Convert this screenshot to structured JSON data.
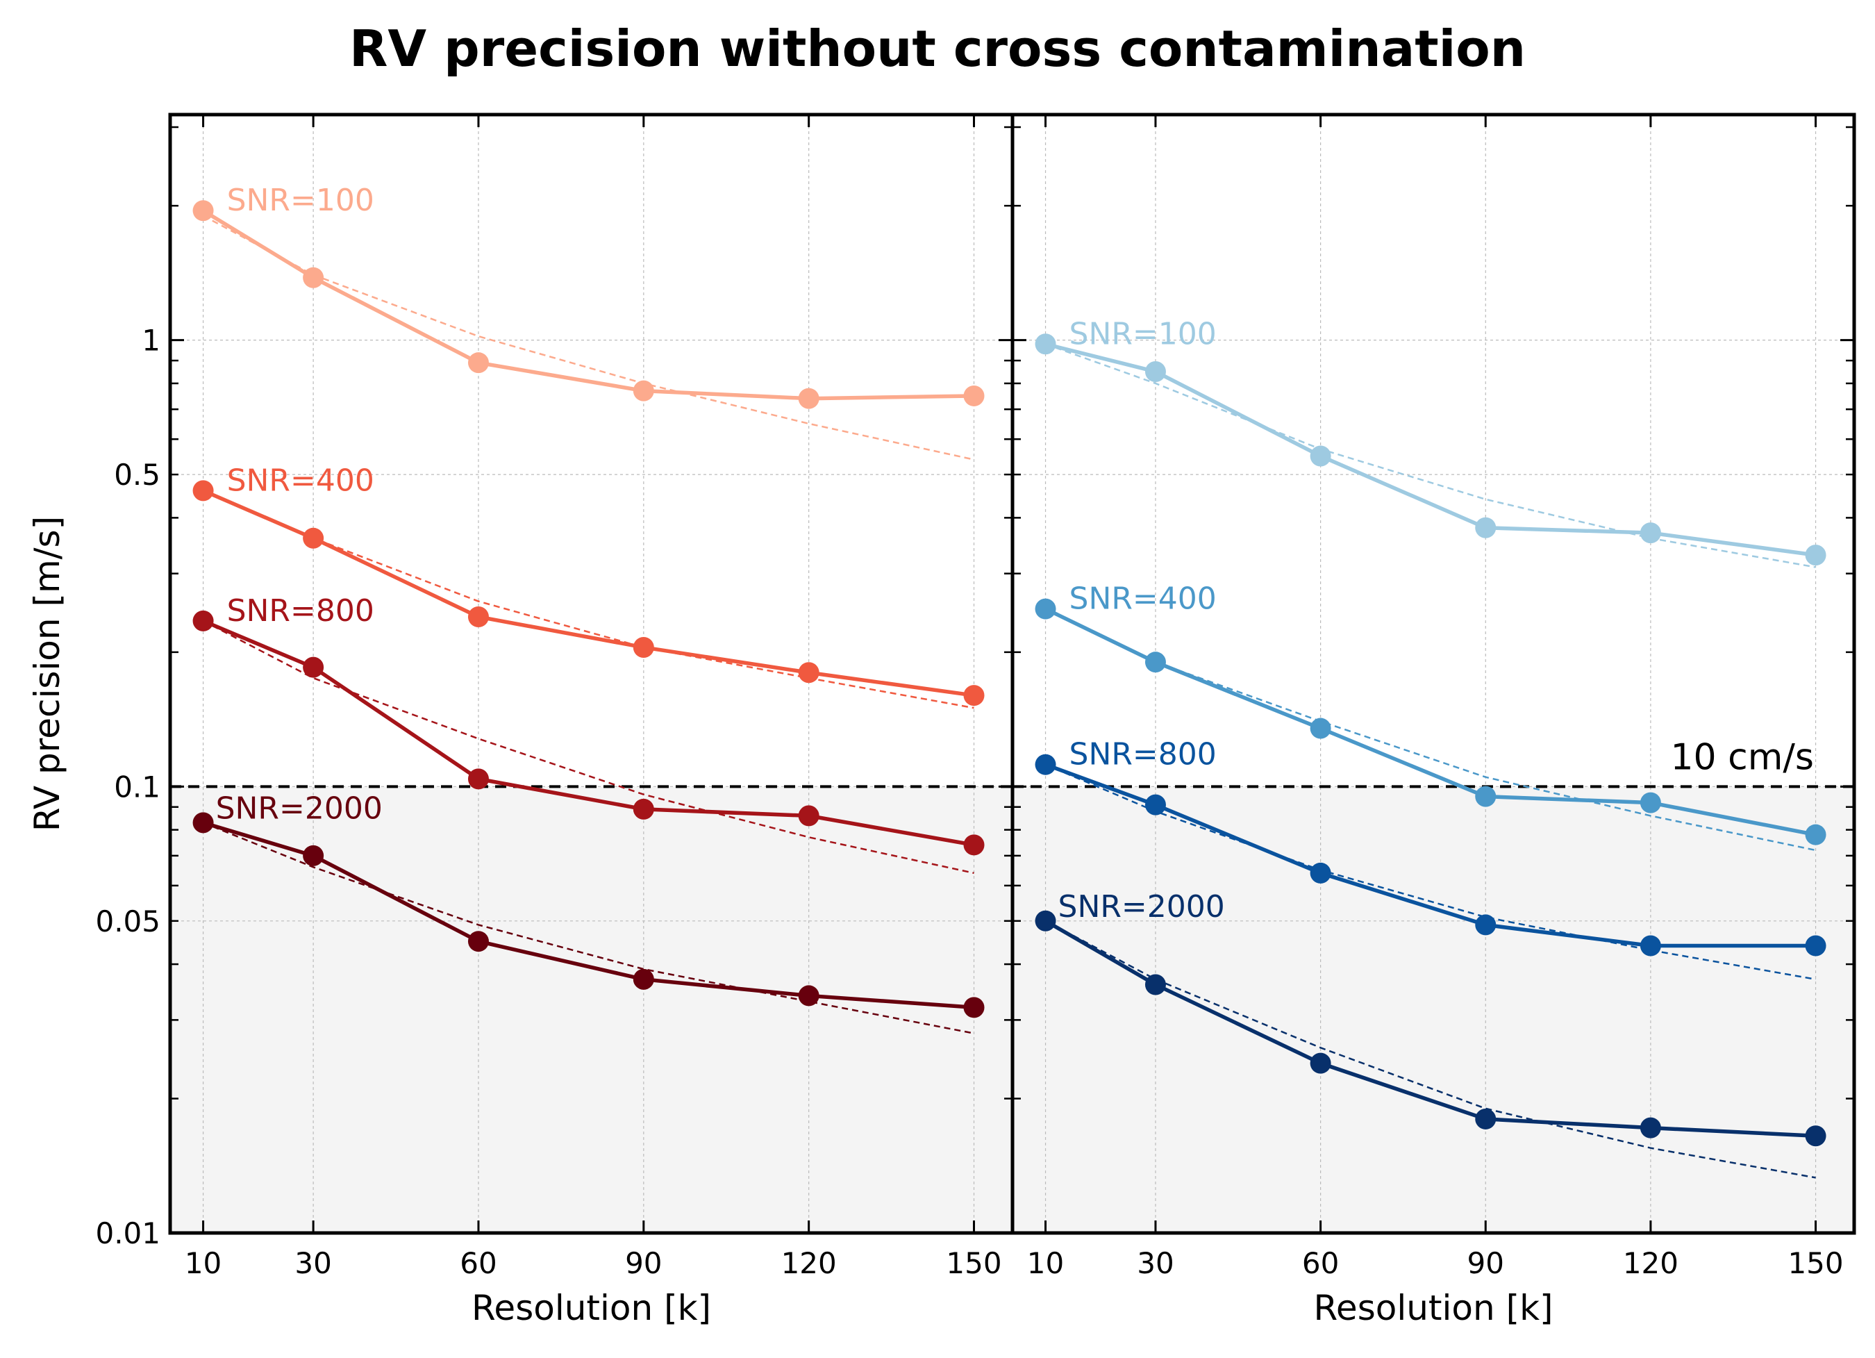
{
  "title": "RV precision without cross contamination",
  "chart_data": [
    {
      "type": "line",
      "panel": "left",
      "xlabel": "Resolution [k]",
      "ylabel": "RV precision [m/s]",
      "yscale": "log",
      "ylim": [
        0.01,
        3.2
      ],
      "xlim": [
        4,
        157
      ],
      "x": [
        10,
        30,
        60,
        90,
        120,
        150
      ],
      "xticks": [
        "10",
        "30",
        "60",
        "90",
        "120",
        "150"
      ],
      "yticks": [
        {
          "value": 0.01,
          "label": "0.01"
        },
        {
          "value": 0.05,
          "label": "0.05"
        },
        {
          "value": 0.1,
          "label": "0.1"
        },
        {
          "value": 0.5,
          "label": "0.5"
        },
        {
          "value": 1,
          "label": "1"
        }
      ],
      "reference_line": {
        "value": 0.1,
        "label": ""
      },
      "series": [
        {
          "name": "SNR=100",
          "color": "#fcaa8d",
          "values": [
            1.95,
            1.38,
            0.89,
            0.77,
            0.74,
            0.75
          ],
          "fit": [
            1.9,
            1.4,
            1.02,
            0.8,
            0.65,
            0.54
          ]
        },
        {
          "name": "SNR=400",
          "color": "#f0593f",
          "values": [
            0.46,
            0.36,
            0.24,
            0.205,
            0.18,
            0.16
          ],
          "fit": [
            0.46,
            0.36,
            0.26,
            0.205,
            0.175,
            0.15
          ]
        },
        {
          "name": "SNR=800",
          "color": "#a51419",
          "values": [
            0.235,
            0.185,
            0.104,
            0.089,
            0.086,
            0.074
          ],
          "fit": [
            0.235,
            0.175,
            0.128,
            0.096,
            0.077,
            0.064
          ]
        },
        {
          "name": "SNR=2000",
          "color": "#67000d",
          "values": [
            0.083,
            0.07,
            0.045,
            0.037,
            0.034,
            0.032
          ],
          "fit": [
            0.083,
            0.066,
            0.049,
            0.039,
            0.033,
            0.028
          ]
        }
      ]
    },
    {
      "type": "line",
      "panel": "right",
      "xlabel": "Resolution [k]",
      "yscale": "log",
      "ylim": [
        0.01,
        3.2
      ],
      "xlim": [
        4,
        157
      ],
      "x": [
        10,
        30,
        60,
        90,
        120,
        150
      ],
      "xticks": [
        "10",
        "30",
        "60",
        "90",
        "120",
        "150"
      ],
      "reference_line": {
        "value": 0.1,
        "label": "10 cm/s"
      },
      "series": [
        {
          "name": "SNR=100",
          "color": "#9ecae1",
          "values": [
            0.98,
            0.85,
            0.55,
            0.38,
            0.37,
            0.33
          ],
          "fit": [
            0.98,
            0.8,
            0.57,
            0.44,
            0.36,
            0.31
          ]
        },
        {
          "name": "SNR=400",
          "color": "#4a98c9",
          "values": [
            0.25,
            0.19,
            0.135,
            0.095,
            0.092,
            0.078
          ],
          "fit": [
            0.25,
            0.19,
            0.14,
            0.105,
            0.086,
            0.072
          ]
        },
        {
          "name": "SNR=800",
          "color": "#0a539e",
          "values": [
            0.112,
            0.091,
            0.064,
            0.049,
            0.044,
            0.044
          ],
          "fit": [
            0.112,
            0.088,
            0.065,
            0.051,
            0.043,
            0.037
          ]
        },
        {
          "name": "SNR=2000",
          "color": "#08306b",
          "values": [
            0.05,
            0.036,
            0.024,
            0.018,
            0.0172,
            0.0165
          ],
          "fit": [
            0.05,
            0.037,
            0.026,
            0.019,
            0.0155,
            0.0133
          ]
        }
      ]
    }
  ]
}
